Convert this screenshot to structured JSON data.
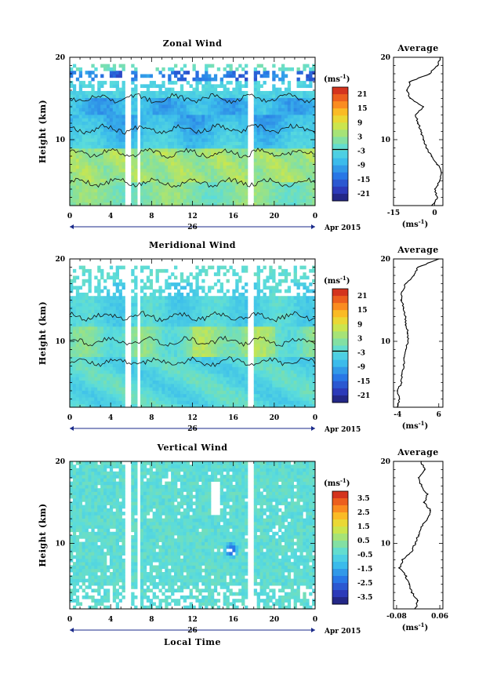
{
  "chart_data": [
    {
      "type": "heatmap",
      "title": "Zonal Wind",
      "ylabel": "Height (km)",
      "xlabel": "",
      "xlim": [
        0,
        24
      ],
      "ylim": [
        2,
        20
      ],
      "x_ticks": [
        "0",
        "4",
        "8",
        "12",
        "16",
        "20",
        "0"
      ],
      "y_ticks": [
        "10",
        "20"
      ],
      "date_label": "26",
      "month_label": "Apr 2015",
      "colorbar": {
        "unit": "(ms⁻¹)",
        "ticks": [
          "21",
          "15",
          "9",
          "3",
          "-3",
          "-9",
          "-15",
          "-21"
        ],
        "range": [
          -24,
          24
        ]
      },
      "profile_title": "Average",
      "profile_xlim": [
        -15,
        3
      ],
      "profile_x_ticks": [
        "-15",
        "0"
      ],
      "profile_xlabel": "(ms⁻¹)",
      "profile": {
        "height": [
          2,
          3,
          4,
          5,
          6,
          7,
          8,
          9,
          10,
          11,
          12,
          13,
          14,
          15,
          16,
          17,
          18,
          19,
          20
        ],
        "value": [
          -1,
          1,
          0,
          2,
          2.5,
          1,
          -1,
          -3,
          -4,
          -5,
          -6,
          -7,
          -4,
          -9,
          -10,
          -9,
          -2,
          1,
          2
        ]
      }
    },
    {
      "type": "heatmap",
      "title": "Meridional Wind",
      "ylabel": "Height (km)",
      "xlabel": "",
      "xlim": [
        0,
        24
      ],
      "ylim": [
        2,
        20
      ],
      "x_ticks": [
        "0",
        "4",
        "8",
        "12",
        "16",
        "20",
        "0"
      ],
      "y_ticks": [
        "10",
        "20"
      ],
      "date_label": "26",
      "month_label": "Apr 2015",
      "colorbar": {
        "unit": "(ms⁻¹)",
        "ticks": [
          "21",
          "15",
          "9",
          "3",
          "-3",
          "-9",
          "-15",
          "-21"
        ],
        "range": [
          -24,
          24
        ]
      },
      "profile_title": "Average",
      "profile_xlim": [
        -5,
        7
      ],
      "profile_x_ticks": [
        "-4",
        "6"
      ],
      "profile_xlabel": "(ms⁻¹)",
      "profile": {
        "height": [
          2,
          3,
          4,
          5,
          6,
          7,
          8,
          9,
          10,
          11,
          12,
          13,
          14,
          15,
          16,
          17,
          18,
          19,
          20
        ],
        "value": [
          -4,
          -3.5,
          -4,
          -3,
          -3,
          -2.5,
          -2.5,
          -2,
          -1.5,
          -1.5,
          -2,
          -2,
          -2.5,
          -3,
          -3,
          -2,
          0,
          1,
          6
        ]
      }
    },
    {
      "type": "heatmap",
      "title": "Vertical Wind",
      "ylabel": "Height (km)",
      "xlabel": "Local Time",
      "xlim": [
        0,
        24
      ],
      "ylim": [
        2,
        20
      ],
      "x_ticks": [
        "0",
        "4",
        "8",
        "12",
        "16",
        "20",
        "0"
      ],
      "y_ticks": [
        "10",
        "20"
      ],
      "date_label": "26",
      "month_label": "Apr 2015",
      "colorbar": {
        "unit": "(ms⁻¹)",
        "ticks": [
          "3.5",
          "2.5",
          "1.5",
          "0.5",
          "-0.5",
          "-1.5",
          "-2.5",
          "-3.5"
        ],
        "range": [
          -4,
          4
        ]
      },
      "profile_title": "Average",
      "profile_xlim": [
        -0.09,
        0.07
      ],
      "profile_x_ticks": [
        "-0.08",
        "0.06"
      ],
      "profile_xlabel": "(ms⁻¹)",
      "profile": {
        "height": [
          2,
          3,
          4,
          5,
          6,
          7,
          8,
          9,
          10,
          11,
          12,
          13,
          14,
          15,
          16,
          17,
          18,
          19,
          20
        ],
        "value": [
          -0.02,
          -0.01,
          -0.03,
          -0.04,
          -0.05,
          -0.07,
          -0.06,
          -0.03,
          -0.02,
          -0.01,
          0.0,
          0.02,
          0.03,
          0.01,
          0.02,
          0.0,
          -0.01,
          0.01,
          0.0
        ]
      }
    }
  ]
}
